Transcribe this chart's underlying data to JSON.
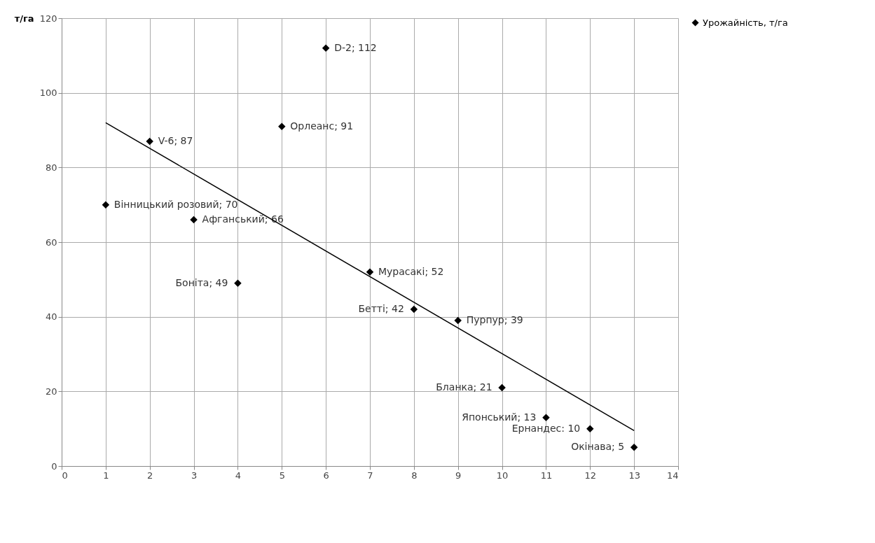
{
  "chart_data": {
    "type": "scatter",
    "ylabel": "т/га",
    "xlim": [
      0,
      14
    ],
    "xticks": [
      0,
      1,
      2,
      3,
      4,
      5,
      6,
      7,
      8,
      9,
      10,
      11,
      12,
      13,
      14
    ],
    "ylim": [
      0,
      120
    ],
    "yticks": [
      0,
      20,
      40,
      60,
      80,
      100,
      120
    ],
    "grid": true,
    "legend": "right",
    "series": [
      {
        "name": "Урожайність, т/га",
        "color": "#000000",
        "marker": "diamond",
        "x": [
          1,
          2,
          3,
          4,
          5,
          6,
          7,
          8,
          9,
          10,
          11,
          12,
          13
        ],
        "values": [
          70,
          87,
          66,
          49,
          91,
          112,
          52,
          42,
          39,
          21,
          13,
          10,
          5
        ],
        "value_labels": [
          "Вінницький розовий; 70",
          "V-6; 87",
          "Афганський; 66",
          "Боніта; 49",
          "Орлеанс; 91",
          "D-2; 112",
          "Мурасакі; 52",
          "Бетті; 42",
          "Пурпур; 39",
          "Бланка; 21",
          "Японський; 13",
          "Ернандес: 10",
          "Окінава; 5"
        ]
      },
      {
        "type": "line",
        "color": "#000000",
        "x": [
          1,
          13
        ],
        "values": [
          92,
          9.5
        ]
      }
    ]
  }
}
